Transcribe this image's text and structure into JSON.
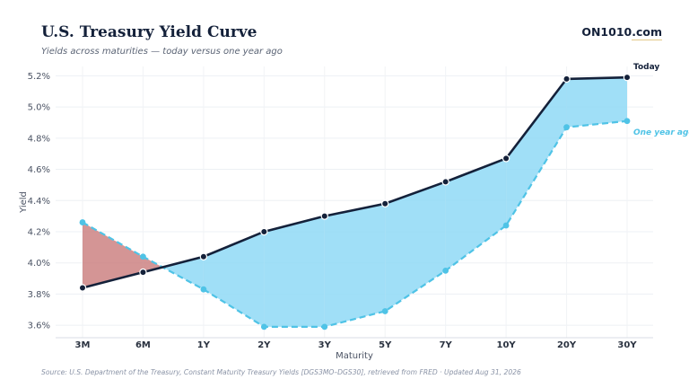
{
  "header": {
    "title": "U.S. Treasury Yield Curve",
    "subtitle": "Yields across maturities — today versus one year ago",
    "brand": "ON1010.com"
  },
  "footer": {
    "source": "Source: U.S. Department of the Treasury, Constant Maturity Treasury Yields [DGS3MO–DGS30], retrieved from FRED · Updated Aug 31, 2026"
  },
  "colors": {
    "today": "#14213a",
    "one_year_ago": "#4fc3e6",
    "fill_today_higher": "#8fd9f6",
    "fill_today_lower": "#c97b7b"
  },
  "chart_data": {
    "type": "line",
    "categories": [
      "3M",
      "6M",
      "1Y",
      "2Y",
      "3Y",
      "5Y",
      "7Y",
      "10Y",
      "20Y",
      "30Y"
    ],
    "series": [
      {
        "name": "Today",
        "values": [
          3.84,
          3.94,
          4.04,
          4.2,
          4.3,
          4.38,
          4.52,
          4.67,
          5.18,
          5.19
        ]
      },
      {
        "name": "One year ago",
        "values": [
          4.26,
          4.04,
          3.83,
          3.59,
          3.59,
          3.69,
          3.95,
          4.24,
          4.87,
          4.91
        ]
      }
    ],
    "xlabel": "Maturity",
    "ylabel": "Yield",
    "ylim": [
      3.52,
      5.26
    ],
    "yticks": [
      "3.6%",
      "3.8%",
      "4.0%",
      "4.2%",
      "4.4%",
      "4.6%",
      "4.8%",
      "5.0%",
      "5.2%"
    ],
    "ytick_values": [
      3.6,
      3.8,
      4.0,
      4.2,
      4.4,
      4.6,
      4.8,
      5.0,
      5.2
    ],
    "grid": true,
    "legend": "labels at right end of lines"
  }
}
